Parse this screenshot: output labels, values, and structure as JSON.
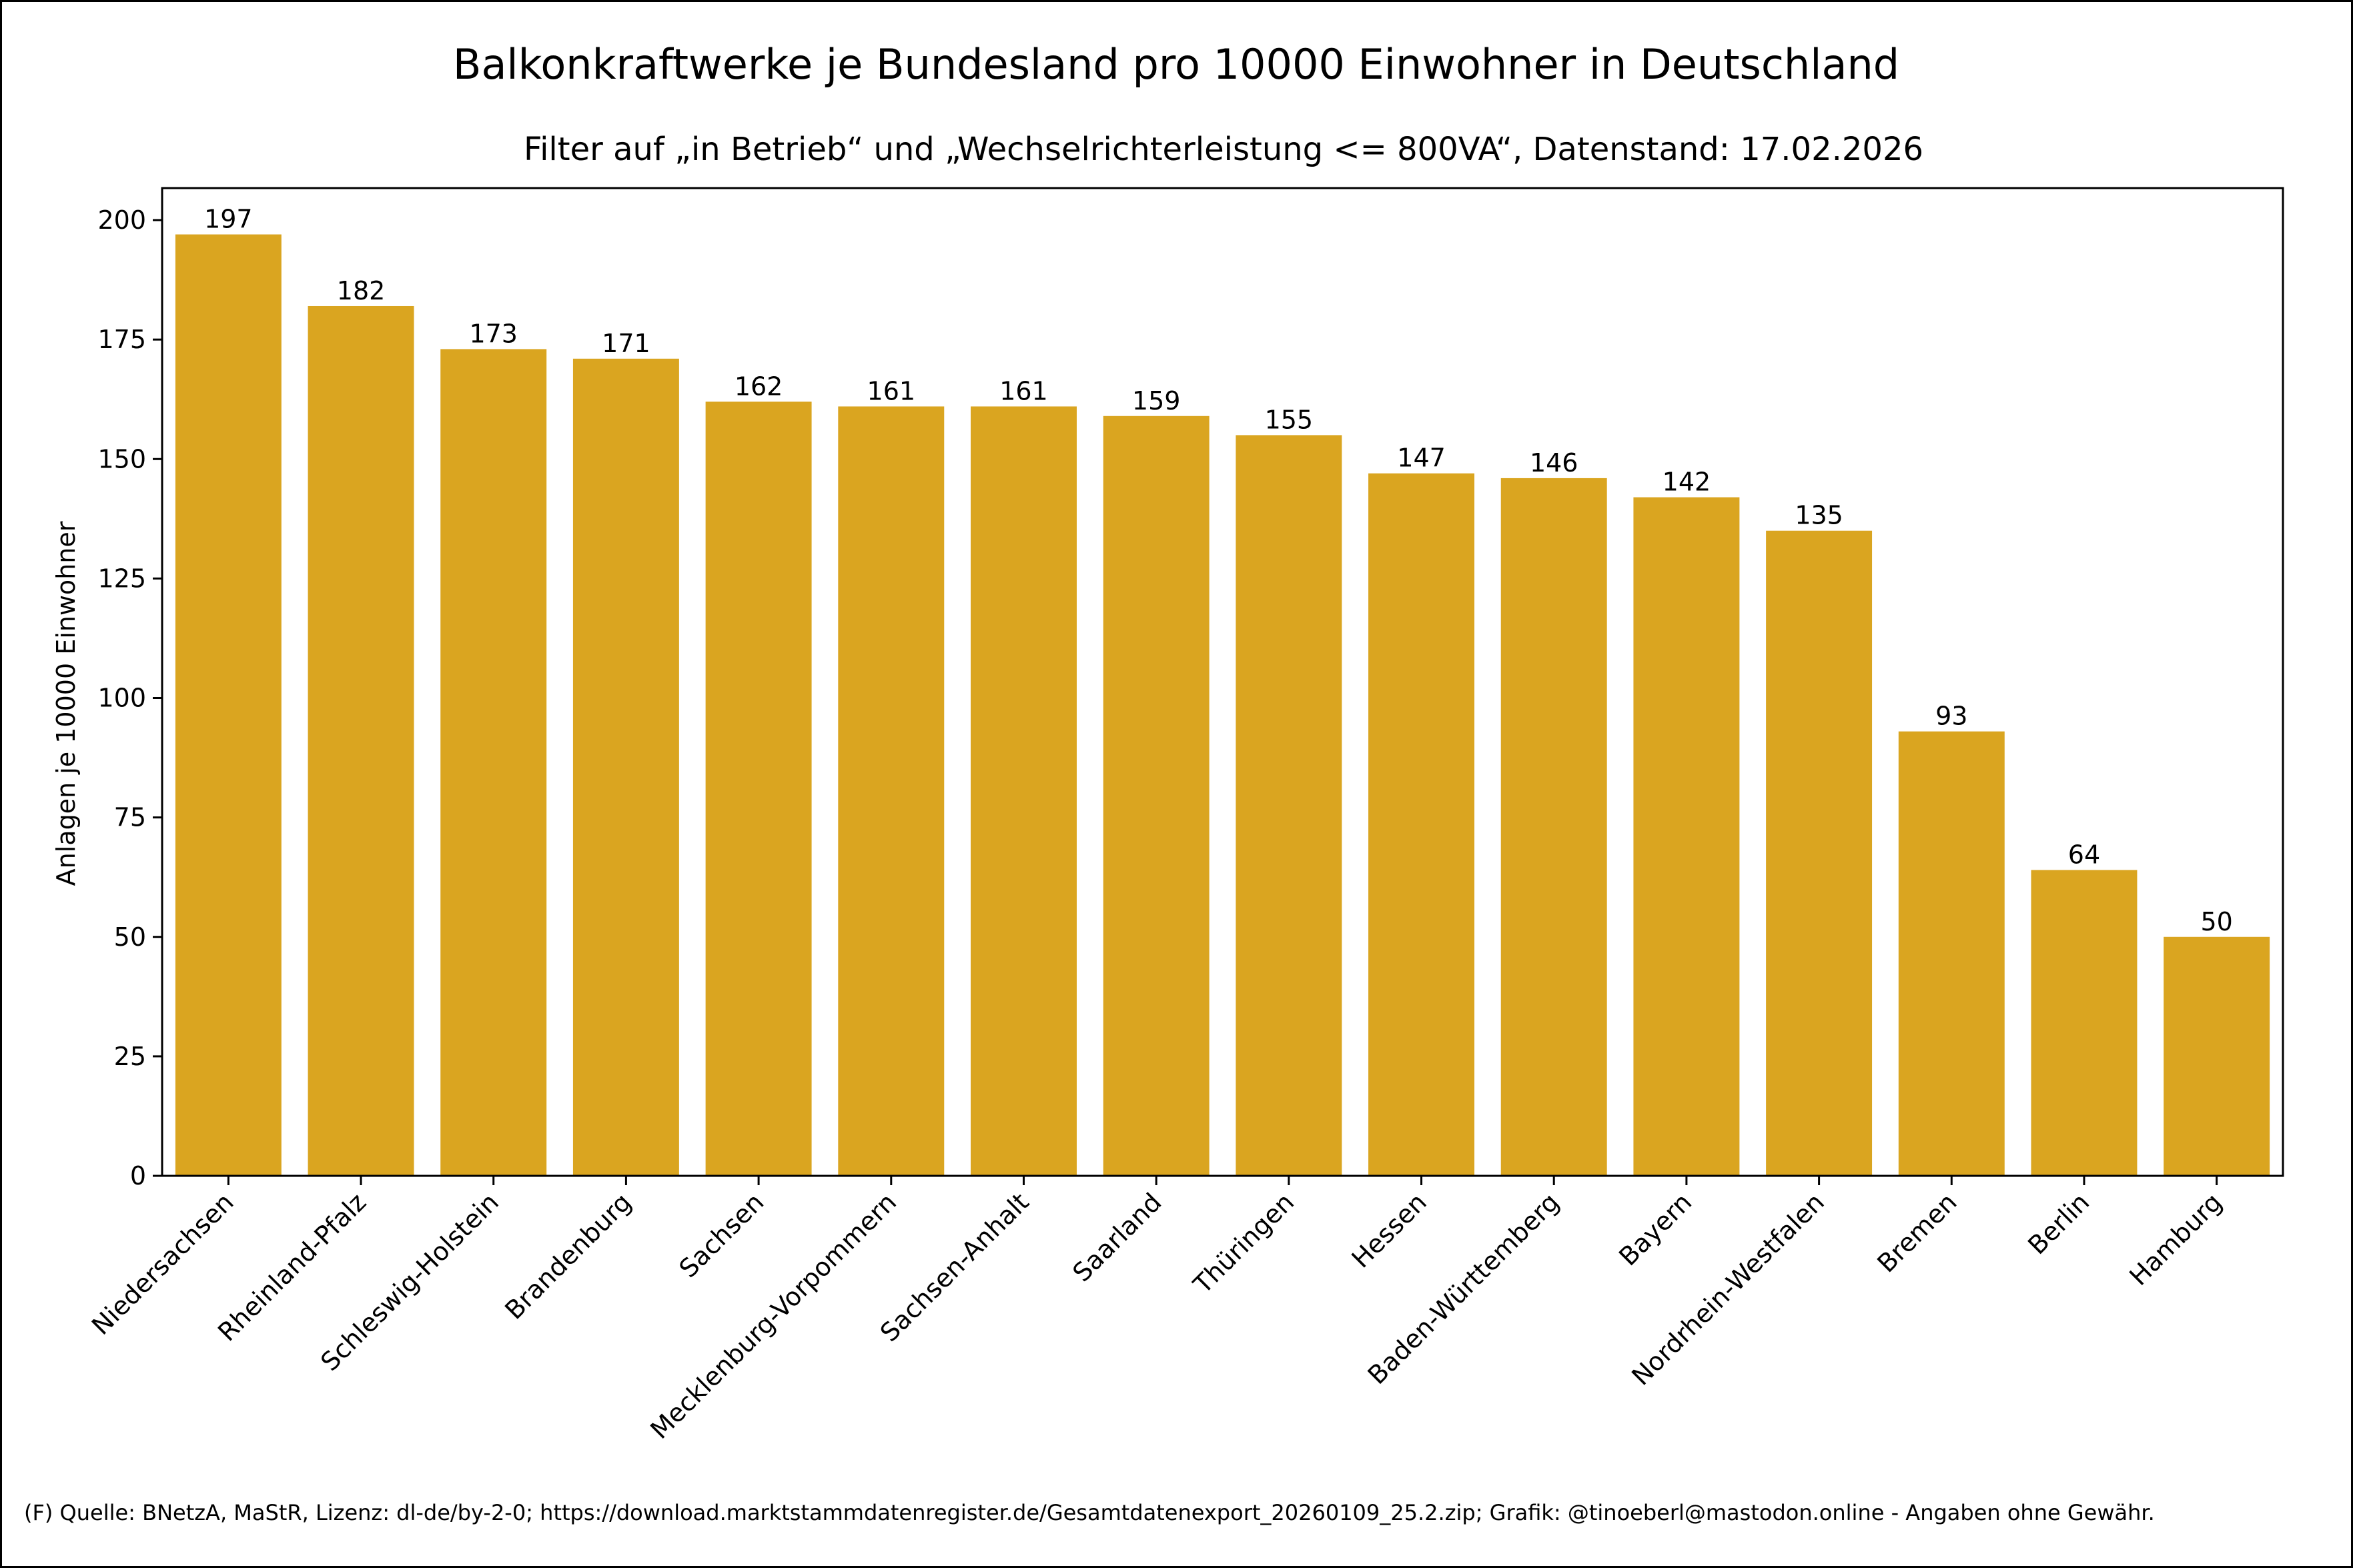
{
  "chart_data": {
    "type": "bar",
    "title": "Balkonkraftwerke je Bundesland pro 10000 Einwohner in Deutschland",
    "subtitle": "Filter auf „in Betrieb“ und „Wechselrichterleistung <= 800VA“, Datenstand: 17.02.2026",
    "xlabel": "",
    "ylabel": "Anlagen je 10000 Einwohner",
    "ylim": [
      0,
      206.7
    ],
    "yticks": [
      0,
      25,
      50,
      75,
      100,
      125,
      150,
      175,
      200
    ],
    "categories": [
      "Niedersachsen",
      "Rheinland-Pfalz",
      "Schleswig-Holstein",
      "Brandenburg",
      "Sachsen",
      "Mecklenburg-Vorpommern",
      "Sachsen-Anhalt",
      "Saarland",
      "Thüringen",
      "Hessen",
      "Baden-Württemberg",
      "Bayern",
      "Nordrhein-Westfalen",
      "Bremen",
      "Berlin",
      "Hamburg"
    ],
    "values": [
      197,
      182,
      173,
      171,
      162,
      161,
      161,
      159,
      155,
      147,
      146,
      142,
      135,
      93,
      64,
      50
    ],
    "value_labels": [
      "197",
      "182",
      "173",
      "171",
      "162",
      "161",
      "161",
      "159",
      "155",
      "147",
      "146",
      "142",
      "135",
      "93",
      "64",
      "50"
    ],
    "bar_color": "#DAA520",
    "grid": false,
    "legend": "none"
  },
  "footer": {
    "source": "(F) Quelle: BNetzA, MaStR, Lizenz: dl-de/by-2-0; https://download.marktstammdatenregister.de/Gesamtdatenexport_20260109_25.2.zip; Grafik: @tinoeberl@mastodon.online - Angaben ohne Gewähr."
  }
}
